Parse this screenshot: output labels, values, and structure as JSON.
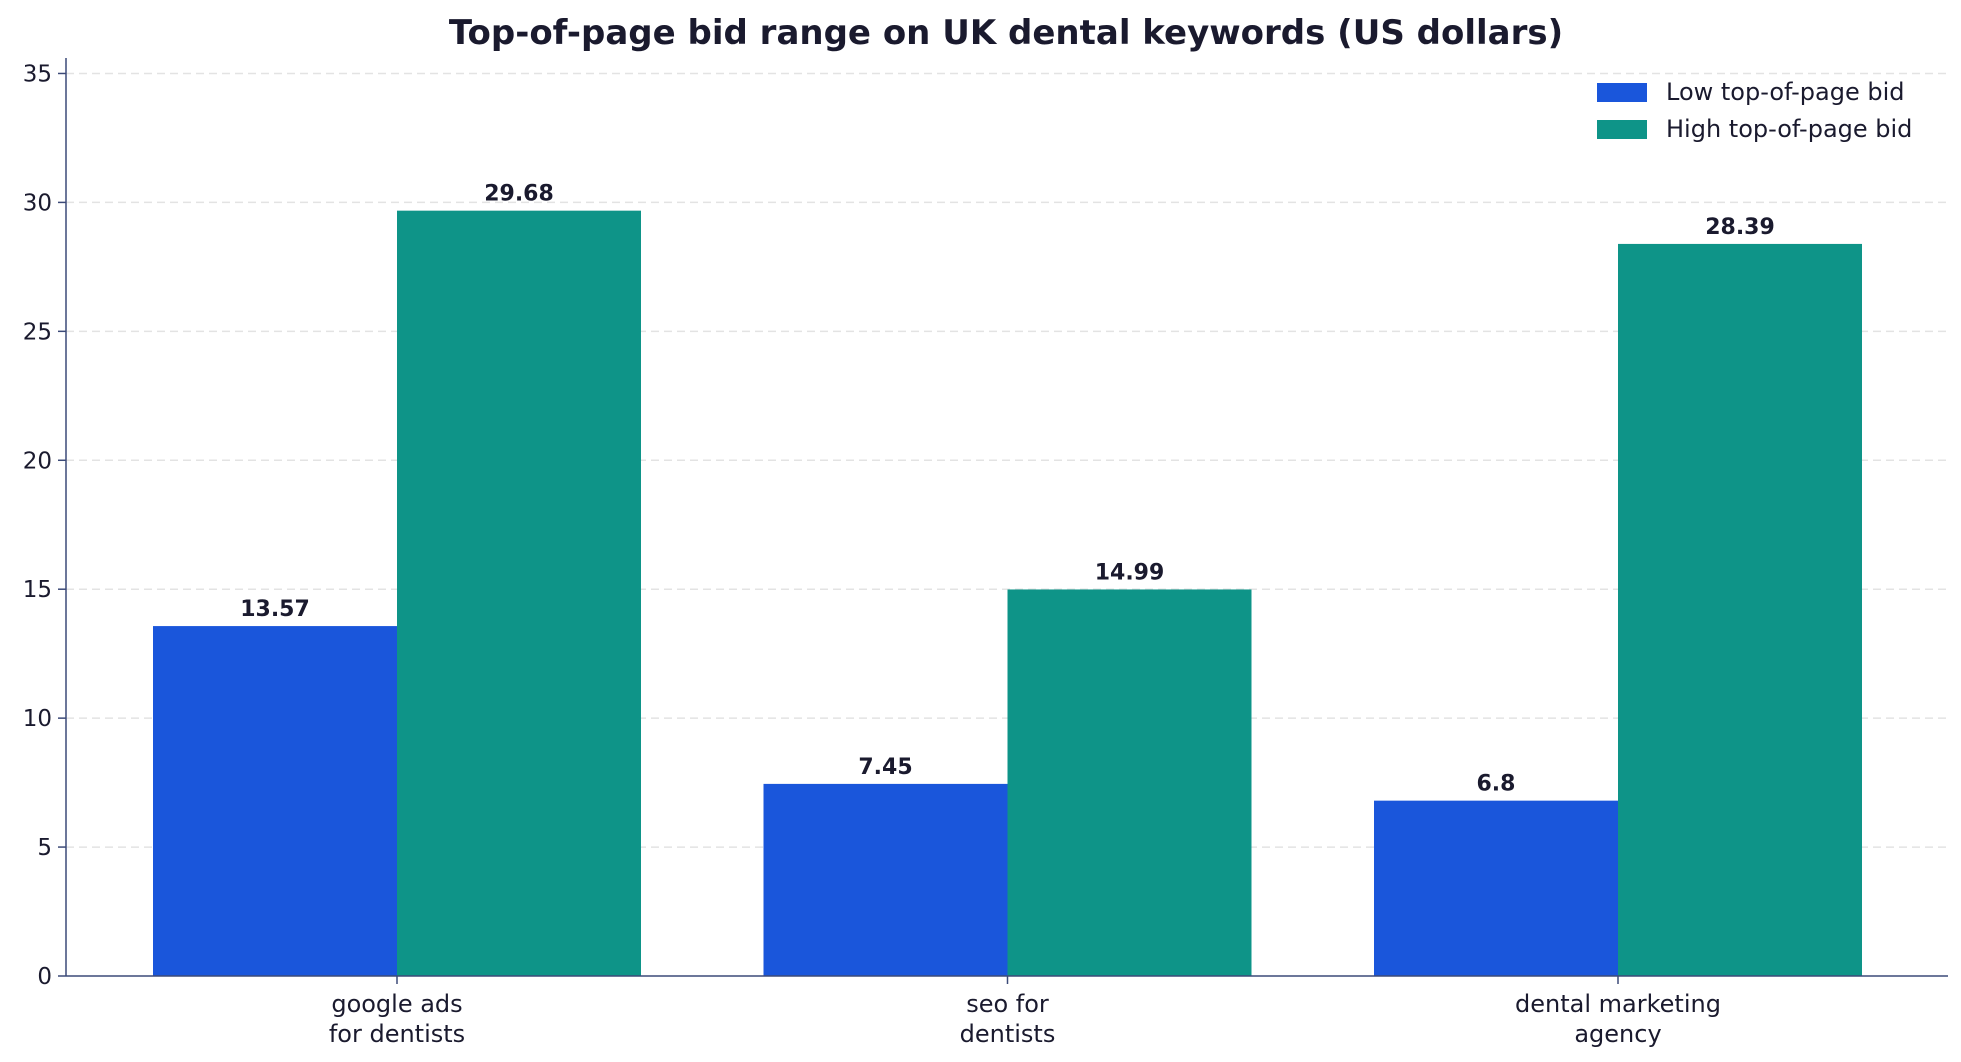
{
  "chart_data": {
    "type": "bar",
    "title": "Top-of-page bid range on UK dental keywords (US dollars)",
    "xlabel": "",
    "ylabel": "",
    "categories": [
      [
        "google ads",
        "for dentists"
      ],
      [
        "seo for",
        "dentists"
      ],
      [
        "dental marketing",
        "agency"
      ]
    ],
    "series": [
      {
        "name": "Low top-of-page bid",
        "color": "#1a56db",
        "values": [
          13.57,
          7.45,
          6.8
        ],
        "labels": [
          "13.57",
          "7.45",
          "6.8"
        ]
      },
      {
        "name": "High top-of-page bid",
        "color": "#0e9488",
        "values": [
          29.68,
          14.99,
          28.39
        ],
        "labels": [
          "29.68",
          "14.99",
          "28.39"
        ]
      }
    ],
    "ylim": [
      0,
      35.6
    ],
    "yticks": [
      0,
      5,
      10,
      15,
      20,
      25,
      30,
      35
    ],
    "grid": true,
    "legend_position": "top-right"
  }
}
